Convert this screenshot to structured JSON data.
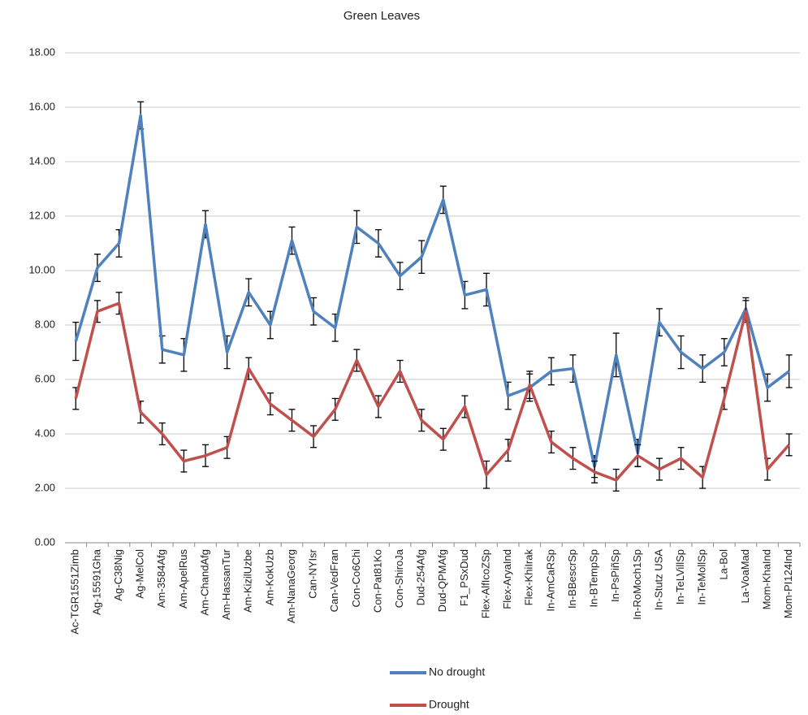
{
  "chart_data": {
    "type": "line",
    "title": "Green Leaves",
    "categories": [
      "Ac-TGR1551Zimb",
      "Ag-15591Gha",
      "Ag-C38Nig",
      "Ag-MelCol",
      "Am-3584Afg",
      "Am-ApelRus",
      "Am-ChandAfg",
      "Am-HassanTur",
      "Am-KizilUzbe",
      "Am-KokUzb",
      "Am-NanaGeorg",
      "Can-NYIsr",
      "Can-VedFran",
      "Con-Co6Chi",
      "Con-Pat81Ko",
      "Con-ShiroJa",
      "Dud-254Afg",
      "Dud-QPMAfg",
      "F1_PSxDud",
      "Flex-AlfIcoZSp",
      "Flex-AryaInd",
      "Flex-KhiIrak",
      "In-AmCaRSp",
      "In-BBescrSp",
      "In-BTempSp",
      "In-PsPiñSp",
      "In-RoMoch1Sp",
      "In-Stutz USA",
      "In-TeLVillSp",
      "In-TeMollSp",
      "La-Bol",
      "La-VoaMad",
      "Mom-KhaInd",
      "Mom-PI124Ind"
    ],
    "series": [
      {
        "name": "No drought",
        "color": "#4f81bd",
        "values": [
          7.4,
          10.1,
          11.0,
          15.7,
          7.1,
          6.9,
          11.7,
          7.0,
          9.2,
          8.0,
          11.1,
          8.5,
          7.9,
          11.6,
          11.0,
          9.8,
          10.5,
          12.6,
          9.1,
          9.3,
          5.4,
          5.7,
          6.3,
          6.4,
          2.8,
          6.9,
          3.3,
          8.1,
          7.0,
          6.4,
          7.0,
          8.6,
          5.7,
          6.3
        ],
        "errors": [
          0.7,
          0.5,
          0.5,
          0.5,
          0.5,
          0.6,
          0.5,
          0.6,
          0.5,
          0.5,
          0.5,
          0.5,
          0.5,
          0.6,
          0.5,
          0.5,
          0.6,
          0.5,
          0.5,
          0.6,
          0.5,
          0.5,
          0.5,
          0.5,
          0.4,
          0.8,
          0.5,
          0.5,
          0.6,
          0.5,
          0.5,
          0.4,
          0.5,
          0.6
        ]
      },
      {
        "name": "Drought",
        "color": "#c0504d",
        "values": [
          5.3,
          8.5,
          8.8,
          4.8,
          4.0,
          3.0,
          3.2,
          3.5,
          6.4,
          5.1,
          4.5,
          3.9,
          4.9,
          6.7,
          5.0,
          6.3,
          4.5,
          3.8,
          5.0,
          2.5,
          3.4,
          5.8,
          3.7,
          3.1,
          2.6,
          2.3,
          3.2,
          2.7,
          3.1,
          2.4,
          5.3,
          8.5,
          2.7,
          3.6
        ],
        "errors": [
          0.4,
          0.4,
          0.4,
          0.4,
          0.4,
          0.4,
          0.4,
          0.4,
          0.4,
          0.4,
          0.4,
          0.4,
          0.4,
          0.4,
          0.4,
          0.4,
          0.4,
          0.4,
          0.4,
          0.5,
          0.4,
          0.5,
          0.4,
          0.4,
          0.4,
          0.4,
          0.4,
          0.4,
          0.4,
          0.4,
          0.4,
          0.4,
          0.4,
          0.4
        ]
      }
    ],
    "ylim": [
      0,
      18
    ],
    "yticks": [
      {
        "value": 0,
        "label": "0.00"
      },
      {
        "value": 2,
        "label": "2.00"
      },
      {
        "value": 4,
        "label": "4.00"
      },
      {
        "value": 6,
        "label": "6.00"
      },
      {
        "value": 8,
        "label": "8.00"
      },
      {
        "value": 10,
        "label": "10.00"
      },
      {
        "value": 12,
        "label": "12.00"
      },
      {
        "value": 14,
        "label": "14.00"
      },
      {
        "value": 16,
        "label": "16.00"
      },
      {
        "value": 18,
        "label": "18.00"
      }
    ],
    "grid": true
  }
}
